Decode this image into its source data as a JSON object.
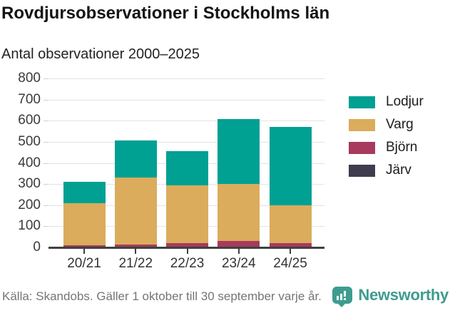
{
  "chart_data": {
    "type": "bar",
    "stacked": true,
    "title": "Rovdjursobservationer i Stockholms län",
    "subtitle": "Antal observationer 2000–2025",
    "categories": [
      "20/21",
      "21/22",
      "22/23",
      "23/24",
      "24/25"
    ],
    "series": [
      {
        "name": "Lodjur",
        "color": "#00A093",
        "values": [
          100,
          175,
          160,
          308,
          372
        ]
      },
      {
        "name": "Varg",
        "color": "#DAAC5C",
        "values": [
          200,
          318,
          275,
          270,
          177
        ]
      },
      {
        "name": "Björn",
        "color": "#A73A5D",
        "values": [
          8,
          10,
          17,
          27,
          18
        ]
      },
      {
        "name": "Järv",
        "color": "#3E3C4E",
        "values": [
          2,
          2,
          3,
          3,
          3
        ]
      }
    ],
    "totals": [
      310,
      505,
      455,
      608,
      570
    ],
    "ylim": [
      0,
      800
    ],
    "yticks": [
      0,
      100,
      200,
      300,
      400,
      500,
      600,
      700,
      800
    ],
    "grid": true,
    "legend_position": "right",
    "stack_order_bottom_to_top": [
      "Järv",
      "Björn",
      "Varg",
      "Lodjur"
    ]
  },
  "footer": {
    "source": "Källa: Skandobs. Gäller 1 oktober till 30 september varje år.",
    "brand": "Newsworthy",
    "brand_color": "#3E9C8E"
  }
}
